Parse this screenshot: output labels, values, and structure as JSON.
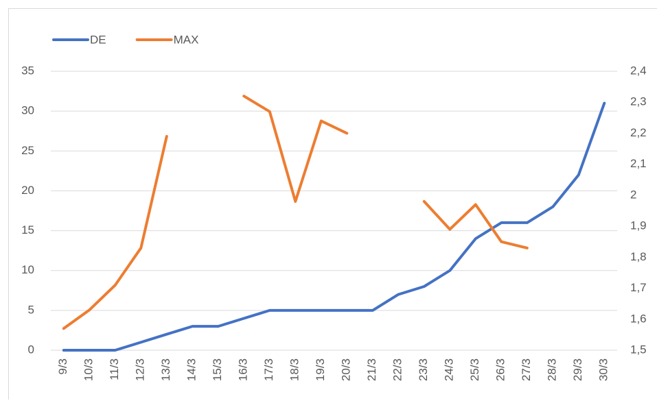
{
  "chart_data": {
    "type": "line",
    "categories": [
      "9/3",
      "10/3",
      "11/3",
      "12/3",
      "13/3",
      "14/3",
      "15/3",
      "16/3",
      "17/3",
      "18/3",
      "19/3",
      "20/3",
      "21/3",
      "22/3",
      "23/3",
      "24/3",
      "25/3",
      "26/3",
      "27/3",
      "28/3",
      "29/3",
      "30/3"
    ],
    "series": [
      {
        "name": "DE",
        "color": "#4472c4",
        "values": [
          0,
          0,
          0,
          1,
          2,
          3,
          3,
          4,
          5,
          5,
          5,
          5,
          5,
          7,
          8,
          10,
          14,
          16,
          16,
          18,
          22,
          31
        ]
      },
      {
        "name": "MAX",
        "color": "#ed7d31",
        "axis": "y2",
        "values": [
          1.57,
          1.63,
          1.71,
          1.83,
          2.19,
          null,
          null,
          2.32,
          2.27,
          1.98,
          2.24,
          2.2,
          null,
          null,
          1.98,
          1.89,
          1.97,
          1.85,
          1.83,
          null,
          null,
          null
        ]
      }
    ],
    "ylim": [
      0,
      35
    ],
    "yticks": [
      0,
      5,
      10,
      15,
      20,
      25,
      30,
      35
    ],
    "y2lim": [
      1.5,
      2.4
    ],
    "y2ticks": [
      {
        "value": 1.5,
        "label": "1,5"
      },
      {
        "value": 1.6,
        "label": "1,6"
      },
      {
        "value": 1.7,
        "label": "1,7"
      },
      {
        "value": 1.8,
        "label": "1,8"
      },
      {
        "value": 1.9,
        "label": "1,9"
      },
      2,
      {
        "value": 2.1,
        "label": "2,1"
      },
      {
        "value": 2.2,
        "label": "2,2"
      },
      {
        "value": 2.3,
        "label": "2,3"
      },
      {
        "value": 2.4,
        "label": "2,4"
      }
    ],
    "grid": true,
    "legend": "top-left"
  }
}
